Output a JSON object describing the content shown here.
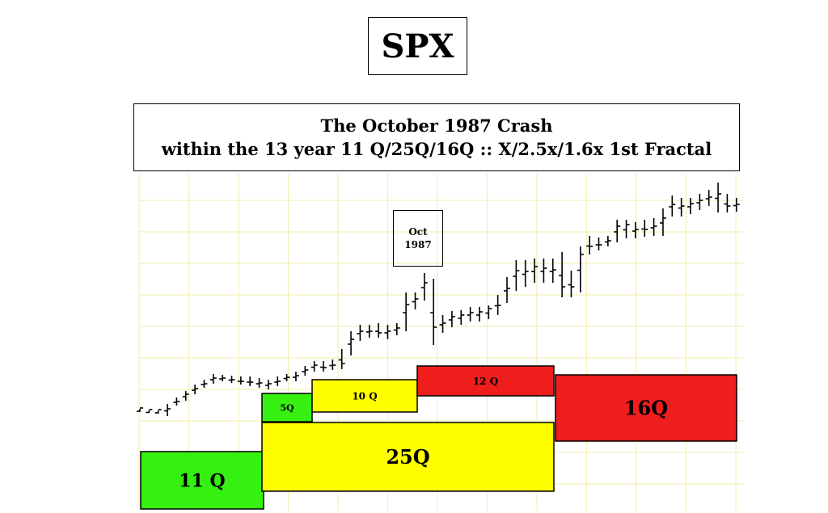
{
  "title": "SPX",
  "subtitle": {
    "line1": "The October  1987 Crash",
    "line2": "within the 13 year 11 Q/25Q/16Q :: X/2.5x/1.6x 1st Fractal"
  },
  "callout": {
    "line1": "Oct",
    "line2": "1987"
  },
  "chart_data": {
    "type": "bar",
    "grid": true,
    "y_unit": "relative price level (no axis printed)",
    "ohlc_relative": [
      [
        0,
        506,
        510,
        505
      ],
      [
        1,
        508,
        511,
        507
      ],
      [
        2,
        508,
        512,
        507
      ],
      [
        3,
        500,
        515,
        506
      ],
      [
        4,
        492,
        502,
        497
      ],
      [
        5,
        484,
        496,
        488
      ],
      [
        6,
        476,
        488,
        481
      ],
      [
        7,
        470,
        480,
        475
      ],
      [
        8,
        463,
        475,
        468
      ],
      [
        9,
        464,
        472,
        468
      ],
      [
        10,
        465,
        474,
        470
      ],
      [
        11,
        466,
        476,
        472
      ],
      [
        12,
        466,
        478,
        473
      ],
      [
        13,
        468,
        480,
        474
      ],
      [
        14,
        470,
        482,
        475
      ],
      [
        15,
        466,
        478,
        472
      ],
      [
        16,
        463,
        472,
        467
      ],
      [
        17,
        460,
        472,
        465
      ],
      [
        18,
        453,
        465,
        458
      ],
      [
        19,
        447,
        460,
        452
      ],
      [
        20,
        447,
        460,
        455
      ],
      [
        21,
        445,
        458,
        452
      ],
      [
        22,
        432,
        457,
        450
      ],
      [
        23,
        410,
        440,
        420
      ],
      [
        24,
        402,
        422,
        410
      ],
      [
        25,
        402,
        418,
        410
      ],
      [
        26,
        400,
        418,
        412
      ],
      [
        27,
        402,
        420,
        410
      ],
      [
        28,
        400,
        415,
        406
      ],
      [
        29,
        362,
        410,
        377
      ],
      [
        30,
        362,
        383,
        370
      ],
      [
        31,
        338,
        372,
        350
      ],
      [
        32,
        345,
        427,
        405
      ],
      [
        33,
        390,
        412,
        400
      ],
      [
        34,
        385,
        405,
        392
      ],
      [
        35,
        384,
        402,
        390
      ],
      [
        36,
        380,
        398,
        387
      ],
      [
        37,
        380,
        398,
        386
      ],
      [
        38,
        378,
        395,
        382
      ],
      [
        39,
        365,
        390,
        378
      ],
      [
        40,
        343,
        375,
        357
      ],
      [
        41,
        322,
        360,
        335
      ],
      [
        42,
        322,
        355,
        336
      ],
      [
        43,
        320,
        350,
        330
      ],
      [
        44,
        320,
        350,
        332
      ],
      [
        45,
        320,
        350,
        334
      ],
      [
        46,
        312,
        368,
        355
      ],
      [
        47,
        335,
        368,
        355
      ],
      [
        48,
        305,
        362,
        315
      ],
      [
        49,
        292,
        315,
        305
      ],
      [
        50,
        294,
        310,
        303
      ],
      [
        51,
        292,
        305,
        298
      ],
      [
        52,
        272,
        300,
        280
      ],
      [
        53,
        272,
        295,
        278
      ],
      [
        54,
        275,
        295,
        284
      ],
      [
        55,
        272,
        293,
        284
      ],
      [
        56,
        270,
        292,
        280
      ],
      [
        57,
        258,
        292,
        270
      ],
      [
        58,
        242,
        268,
        253
      ],
      [
        59,
        245,
        268,
        255
      ],
      [
        60,
        245,
        265,
        252
      ],
      [
        61,
        240,
        260,
        248
      ],
      [
        62,
        235,
        255,
        244
      ],
      [
        63,
        226,
        263,
        240
      ],
      [
        64,
        240,
        263,
        255
      ],
      [
        65,
        245,
        262,
        253
      ]
    ],
    "boxes": [
      {
        "label": "11 Q",
        "color": "#35f011"
      },
      {
        "label": "5Q",
        "color": "#35f011"
      },
      {
        "label": "10 Q",
        "color": "#ffff00"
      },
      {
        "label": "25Q",
        "color": "#ffff00"
      },
      {
        "label": "12 Q",
        "color": "#f01d1d"
      },
      {
        "label": "16Q",
        "color": "#f01d1d"
      }
    ]
  }
}
